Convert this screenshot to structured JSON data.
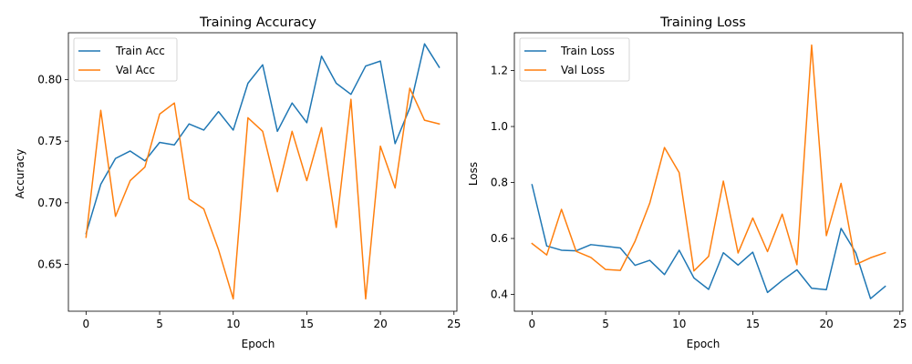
{
  "colors": {
    "blue": "#1f77b4",
    "orange": "#ff7f0e"
  },
  "chart_data": [
    {
      "type": "line",
      "title": "Training Accuracy",
      "xlabel": "Epoch",
      "ylabel": "Accuracy",
      "xlim": [
        -1.2,
        25.2
      ],
      "ylim": [
        0.612,
        0.838
      ],
      "xticks": [
        0,
        5,
        10,
        15,
        20,
        25
      ],
      "yticks": [
        0.65,
        0.7,
        0.75,
        0.8
      ],
      "ytick_labels": [
        "0.65",
        "0.70",
        "0.75",
        "0.80"
      ],
      "grid": false,
      "legend": "top-left",
      "x": [
        0,
        1,
        2,
        3,
        4,
        5,
        6,
        7,
        8,
        9,
        10,
        11,
        12,
        13,
        14,
        15,
        16,
        17,
        18,
        19,
        20,
        21,
        22,
        23,
        24
      ],
      "series": [
        {
          "name": "Train Acc",
          "color": "#1f77b4",
          "values": [
            0.675,
            0.715,
            0.736,
            0.742,
            0.734,
            0.749,
            0.747,
            0.764,
            0.759,
            0.774,
            0.759,
            0.797,
            0.812,
            0.758,
            0.781,
            0.765,
            0.819,
            0.797,
            0.788,
            0.811,
            0.815,
            0.748,
            0.777,
            0.829,
            0.81
          ]
        },
        {
          "name": "Val Acc",
          "color": "#ff7f0e",
          "values": [
            0.672,
            0.775,
            0.689,
            0.718,
            0.729,
            0.772,
            0.781,
            0.703,
            0.695,
            0.662,
            0.622,
            0.769,
            0.758,
            0.709,
            0.758,
            0.718,
            0.761,
            0.68,
            0.784,
            0.622,
            0.746,
            0.712,
            0.793,
            0.767,
            0.764
          ]
        }
      ]
    },
    {
      "type": "line",
      "title": "Training Loss",
      "xlabel": "Epoch",
      "ylabel": "Loss",
      "xlim": [
        -1.2,
        25.2
      ],
      "ylim": [
        0.34,
        1.335
      ],
      "xticks": [
        0,
        5,
        10,
        15,
        20,
        25
      ],
      "yticks": [
        0.4,
        0.6,
        0.8,
        1.0,
        1.2
      ],
      "ytick_labels": [
        "0.4",
        "0.6",
        "0.8",
        "1.0",
        "1.2"
      ],
      "grid": false,
      "legend": "top-left",
      "x": [
        0,
        1,
        2,
        3,
        4,
        5,
        6,
        7,
        8,
        9,
        10,
        11,
        12,
        13,
        14,
        15,
        16,
        17,
        18,
        19,
        20,
        21,
        22,
        23,
        24
      ],
      "series": [
        {
          "name": "Train Loss",
          "color": "#1f77b4",
          "values": [
            0.792,
            0.573,
            0.558,
            0.556,
            0.578,
            0.572,
            0.566,
            0.504,
            0.522,
            0.471,
            0.558,
            0.459,
            0.418,
            0.549,
            0.505,
            0.551,
            0.407,
            0.45,
            0.488,
            0.422,
            0.417,
            0.636,
            0.549,
            0.385,
            0.429
          ]
        },
        {
          "name": "Val Loss",
          "color": "#ff7f0e",
          "values": [
            0.582,
            0.541,
            0.704,
            0.554,
            0.532,
            0.489,
            0.486,
            0.59,
            0.726,
            0.925,
            0.835,
            0.484,
            0.536,
            0.805,
            0.548,
            0.673,
            0.553,
            0.687,
            0.506,
            1.291,
            0.61,
            0.797,
            0.507,
            0.531,
            0.549
          ]
        }
      ]
    }
  ]
}
